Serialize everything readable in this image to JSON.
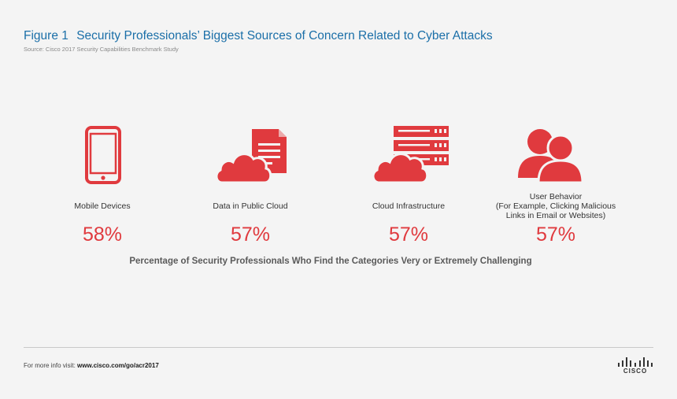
{
  "header": {
    "figure_number": "Figure 1",
    "title": "Security Professionals’ Biggest Sources of Concern Related to Cyber Attacks",
    "source": "Source: Cisco 2017 Security Capabilities Benchmark Study"
  },
  "chart_data": {
    "type": "table",
    "categories": [
      "Mobile Devices",
      "Data in Public Cloud",
      "Cloud Infrastructure",
      "User Behavior\n(For Example, Clicking Malicious\nLinks in Email or Websites)"
    ],
    "values": [
      58,
      57,
      57,
      57
    ],
    "value_labels": [
      "58%",
      "57%",
      "57%",
      "57%"
    ],
    "icons": [
      "mobile-phone-icon",
      "cloud-document-icon",
      "cloud-server-icon",
      "users-icon"
    ],
    "caption": "Percentage of Security Professionals Who Find the Categories Very or Extremely Challenging"
  },
  "footer": {
    "prefix": "For more info visit: ",
    "url": "www.cisco.com/go/acr2017"
  },
  "logo": {
    "word": "CISCO"
  },
  "colors": {
    "accent": "#e03a3e",
    "title": "#1b6fa8"
  }
}
